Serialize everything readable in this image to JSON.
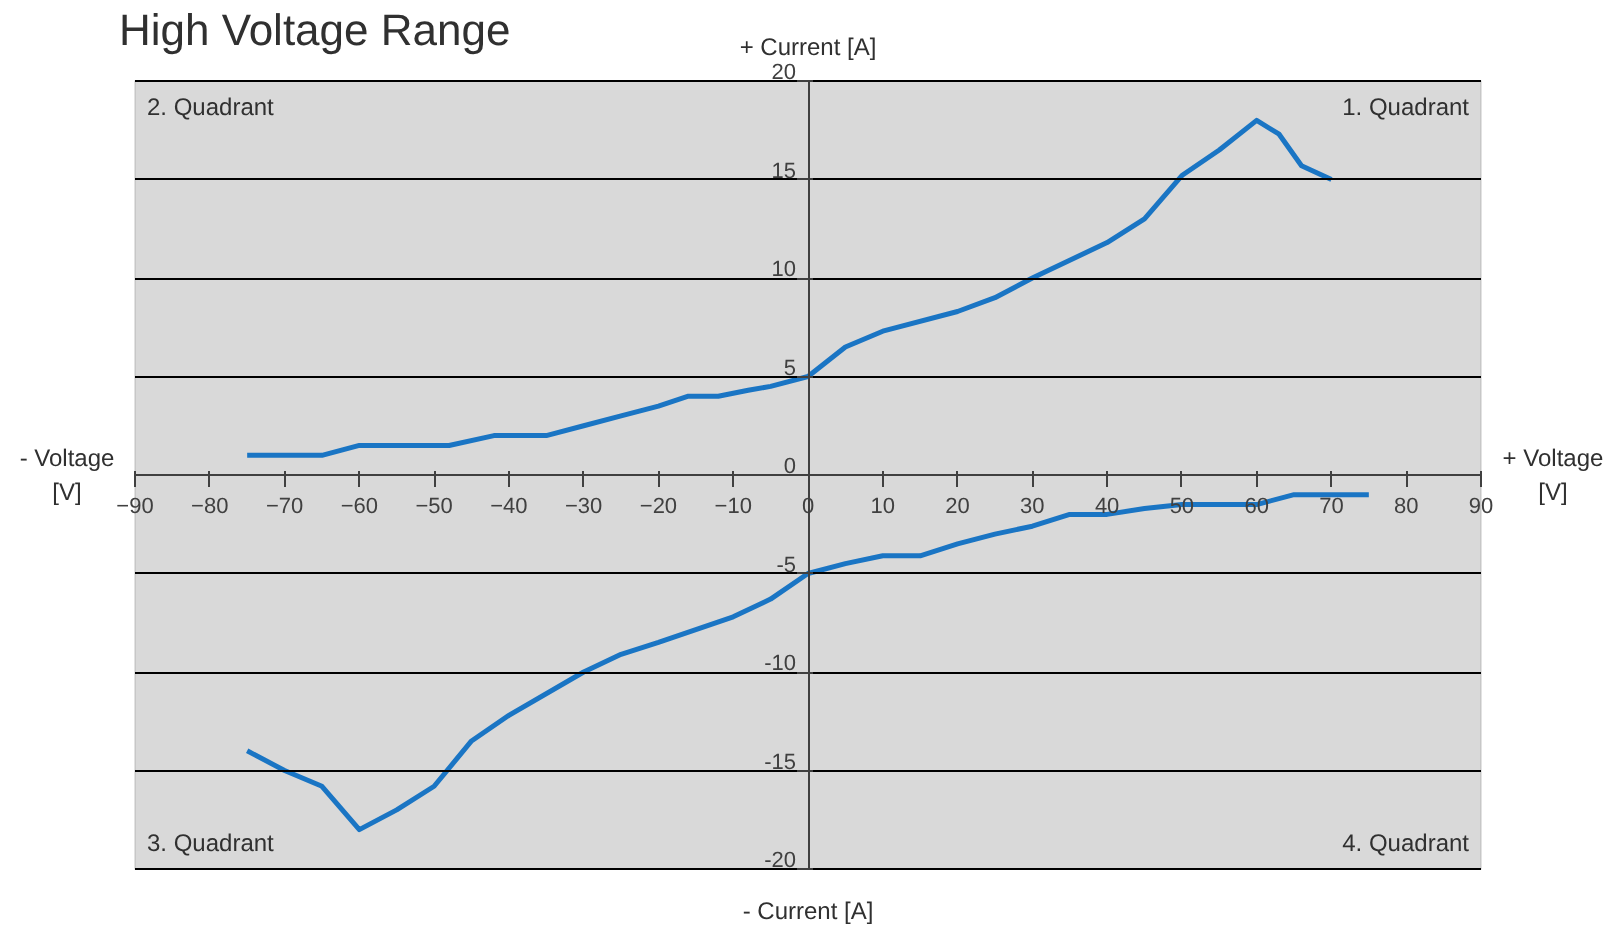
{
  "chart_data": {
    "type": "line",
    "title": "High Voltage Range",
    "xlabel": "+ Voltage [V]",
    "ylabel": "+ Current [A]",
    "annotations": [
      "- Voltage [V]",
      "- Current [A]",
      "1. Quadrant",
      "2. Quadrant",
      "3. Quadrant",
      "4. Quadrant"
    ],
    "series": [
      {
        "color": "#1a75c4",
        "x": [
          -75,
          -65,
          -60,
          -48,
          -42,
          -35,
          -30,
          -25,
          -20,
          -16,
          -12,
          -8,
          -5,
          0,
          5,
          10,
          20,
          25,
          30,
          40,
          45,
          50,
          55,
          60,
          63,
          66,
          70
        ],
        "values": [
          1,
          1,
          1.5,
          1.5,
          2,
          2,
          2.5,
          3,
          3.5,
          4,
          4,
          4.3,
          4.5,
          5,
          6.5,
          7.3,
          8.3,
          9,
          10,
          11.8,
          13,
          15.2,
          16.5,
          18,
          17.3,
          15.7,
          15
        ]
      },
      {
        "color": "#1a75c4",
        "x": [
          -75,
          -70,
          -65,
          -60,
          -55,
          -50,
          -45,
          -40,
          -30,
          -25,
          -20,
          -10,
          -5,
          0,
          5,
          10,
          15,
          20,
          25,
          30,
          35,
          40,
          45,
          50,
          60,
          65,
          75
        ],
        "values": [
          -14,
          -15,
          -15.8,
          -18,
          -17,
          -15.8,
          -13.5,
          -12.2,
          -10,
          -9.1,
          -8.5,
          -7.2,
          -6.3,
          -5,
          -4.5,
          -4.1,
          -4.1,
          -3.5,
          -3,
          -2.6,
          -2,
          -2,
          -1.7,
          -1.5,
          -1.5,
          -1,
          -1
        ]
      }
    ],
    "xlim": [
      -90,
      90
    ],
    "ylim": [
      -20,
      20
    ],
    "xticks": [
      -90,
      -80,
      -70,
      -60,
      -50,
      -40,
      -30,
      -20,
      -10,
      0,
      10,
      20,
      30,
      40,
      50,
      60,
      70,
      80,
      90
    ],
    "yticks": [
      -20,
      -15,
      -10,
      -5,
      0,
      5,
      10,
      15,
      20
    ],
    "grid": "y",
    "line_style": "solid"
  }
}
